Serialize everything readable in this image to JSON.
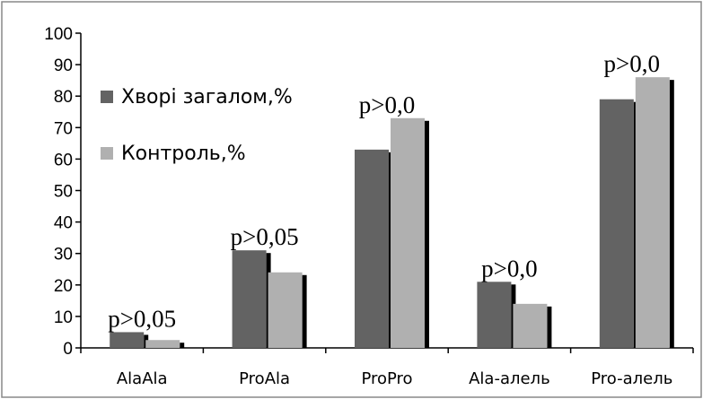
{
  "chart_data": {
    "type": "bar",
    "categories": [
      "AlaAla",
      "ProAla",
      "ProPro",
      "Ala-алель",
      "Pro-алель"
    ],
    "series": [
      {
        "name": "Хворі загалом,%",
        "values": [
          5,
          31,
          63,
          21,
          79
        ],
        "color": "#636363"
      },
      {
        "name": "Контроль,%",
        "values": [
          2.5,
          24,
          73,
          14,
          86
        ],
        "color": "#b0b0b0"
      }
    ],
    "ylim": [
      0,
      100
    ],
    "yticks": [
      0,
      10,
      20,
      30,
      40,
      50,
      60,
      70,
      80,
      90,
      100
    ],
    "annotations": [
      "p>0,05",
      "p>0,05",
      "p>0,0",
      "p>0,0",
      "p>0,0"
    ],
    "grid": false,
    "legend": "left-upper",
    "title": "",
    "xlabel": "",
    "ylabel": ""
  }
}
